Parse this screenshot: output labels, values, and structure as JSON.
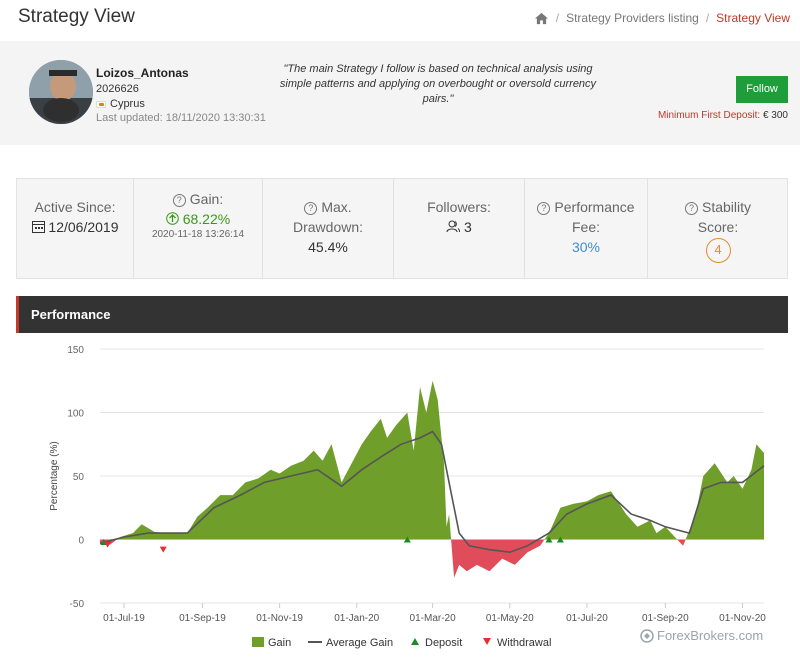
{
  "page": {
    "title": "Strategy View"
  },
  "breadcrumb": {
    "item1": "Strategy Providers listing",
    "item2": "Strategy View",
    "separator": "/"
  },
  "provider": {
    "name": "Loizos_Antonas",
    "id": "2026626",
    "country": "Cyprus",
    "last_updated": "Last updated: 18/11/2020 13:30:31",
    "quote": "\"The main Strategy I follow is based on technical analysis using simple patterns and applying on overbought or oversold currency pairs.\"",
    "follow_label": "Follow",
    "min_deposit_label": "Minimum First Deposit:",
    "min_deposit_value": "€ 300"
  },
  "stats": {
    "active_since_label": "Active Since:",
    "active_since_value": "12/06/2019",
    "gain_label": "Gain:",
    "gain_value": "68.22%",
    "gain_time": "2020-11-18 13:26:14",
    "max_label": "Max.",
    "drawdown_label": "Drawdown:",
    "drawdown_value": "45.4%",
    "followers_label": "Followers:",
    "followers_value": "3",
    "performance_label": "Performance",
    "fee_label": "Fee:",
    "fee_value": "30%",
    "stability_label": "Stability",
    "score_label": "Score:",
    "score_value": "4",
    "colors": {
      "gain": "#3a9a1a",
      "fee": "#3d8fd1",
      "score": "#e08e2b"
    }
  },
  "performance": {
    "section_title": "Performance"
  },
  "watermark": "ForexBrokers.com",
  "chart_data": {
    "type": "area",
    "title": "",
    "xlabel": "",
    "ylabel": "Percentage (%)",
    "ylim": [
      -50,
      150
    ],
    "yticks": [
      -50,
      0,
      50,
      100,
      150
    ],
    "xtick_labels": [
      "01-Jul-19",
      "01-Sep-19",
      "01-Nov-19",
      "01-Jan-20",
      "01-Mar-20",
      "01-May-20",
      "01-Jul-20",
      "01-Sep-20",
      "01-Nov-20"
    ],
    "x_range": [
      "2019-06-12",
      "2020-11-18"
    ],
    "grid": true,
    "legend_position": "bottom",
    "series": [
      {
        "name": "Gain",
        "type": "area",
        "color_positive": "#6f9e2b",
        "color_negative": "#e04c5a",
        "points": [
          [
            "2019-06-12",
            -3
          ],
          [
            "2019-06-20",
            -4
          ],
          [
            "2019-06-28",
            2
          ],
          [
            "2019-07-08",
            5
          ],
          [
            "2019-07-15",
            12
          ],
          [
            "2019-07-25",
            6
          ],
          [
            "2019-08-05",
            5
          ],
          [
            "2019-08-20",
            5
          ],
          [
            "2019-08-28",
            18
          ],
          [
            "2019-09-05",
            25
          ],
          [
            "2019-09-15",
            35
          ],
          [
            "2019-09-25",
            35
          ],
          [
            "2019-10-05",
            45
          ],
          [
            "2019-10-15",
            48
          ],
          [
            "2019-10-25",
            55
          ],
          [
            "2019-11-01",
            52
          ],
          [
            "2019-11-10",
            58
          ],
          [
            "2019-11-20",
            62
          ],
          [
            "2019-11-28",
            70
          ],
          [
            "2019-12-05",
            62
          ],
          [
            "2019-12-12",
            75
          ],
          [
            "2019-12-20",
            45
          ],
          [
            "2019-12-28",
            60
          ],
          [
            "2020-01-05",
            75
          ],
          [
            "2020-01-12",
            85
          ],
          [
            "2020-01-20",
            95
          ],
          [
            "2020-01-25",
            80
          ],
          [
            "2020-02-01",
            90
          ],
          [
            "2020-02-10",
            100
          ],
          [
            "2020-02-15",
            70
          ],
          [
            "2020-02-20",
            120
          ],
          [
            "2020-02-25",
            100
          ],
          [
            "2020-03-01",
            125
          ],
          [
            "2020-03-05",
            110
          ],
          [
            "2020-03-10",
            60
          ],
          [
            "2020-03-12",
            10
          ],
          [
            "2020-03-14",
            20
          ],
          [
            "2020-03-18",
            -30
          ],
          [
            "2020-03-22",
            -20
          ],
          [
            "2020-03-28",
            -25
          ],
          [
            "2020-04-05",
            -20
          ],
          [
            "2020-04-15",
            -25
          ],
          [
            "2020-04-25",
            -15
          ],
          [
            "2020-05-05",
            -20
          ],
          [
            "2020-05-15",
            -10
          ],
          [
            "2020-05-25",
            -5
          ],
          [
            "2020-06-01",
            5
          ],
          [
            "2020-06-10",
            25
          ],
          [
            "2020-06-20",
            28
          ],
          [
            "2020-07-01",
            30
          ],
          [
            "2020-07-10",
            35
          ],
          [
            "2020-07-20",
            38
          ],
          [
            "2020-08-01",
            20
          ],
          [
            "2020-08-10",
            10
          ],
          [
            "2020-08-20",
            15
          ],
          [
            "2020-08-25",
            5
          ],
          [
            "2020-09-01",
            10
          ],
          [
            "2020-09-15",
            -5
          ],
          [
            "2020-09-25",
            20
          ],
          [
            "2020-10-01",
            50
          ],
          [
            "2020-10-10",
            60
          ],
          [
            "2020-10-20",
            45
          ],
          [
            "2020-10-25",
            50
          ],
          [
            "2020-11-01",
            40
          ],
          [
            "2020-11-08",
            55
          ],
          [
            "2020-11-12",
            75
          ],
          [
            "2020-11-18",
            68
          ]
        ]
      },
      {
        "name": "Average Gain",
        "type": "line",
        "color": "#555555",
        "points": [
          [
            "2019-06-12",
            -3
          ],
          [
            "2019-07-01",
            2
          ],
          [
            "2019-07-20",
            5
          ],
          [
            "2019-08-20",
            5
          ],
          [
            "2019-09-10",
            25
          ],
          [
            "2019-10-01",
            35
          ],
          [
            "2019-10-20",
            45
          ],
          [
            "2019-11-10",
            50
          ],
          [
            "2019-12-01",
            55
          ],
          [
            "2019-12-20",
            42
          ],
          [
            "2020-01-05",
            55
          ],
          [
            "2020-01-20",
            65
          ],
          [
            "2020-02-05",
            75
          ],
          [
            "2020-02-20",
            80
          ],
          [
            "2020-03-01",
            85
          ],
          [
            "2020-03-08",
            75
          ],
          [
            "2020-03-15",
            40
          ],
          [
            "2020-03-22",
            5
          ],
          [
            "2020-03-30",
            -5
          ],
          [
            "2020-04-15",
            -8
          ],
          [
            "2020-05-01",
            -10
          ],
          [
            "2020-05-15",
            -5
          ],
          [
            "2020-06-01",
            5
          ],
          [
            "2020-06-15",
            20
          ],
          [
            "2020-07-01",
            28
          ],
          [
            "2020-07-20",
            35
          ],
          [
            "2020-08-05",
            20
          ],
          [
            "2020-08-20",
            15
          ],
          [
            "2020-09-01",
            10
          ],
          [
            "2020-09-20",
            5
          ],
          [
            "2020-10-01",
            40
          ],
          [
            "2020-10-15",
            45
          ],
          [
            "2020-11-01",
            45
          ],
          [
            "2020-11-18",
            58
          ]
        ]
      },
      {
        "name": "Deposit",
        "type": "marker",
        "marker": "triangle-up",
        "color": "#1d8a2a",
        "points": [
          [
            "2019-06-15",
            -2
          ],
          [
            "2020-02-10",
            0
          ],
          [
            "2020-06-01",
            0
          ],
          [
            "2020-06-10",
            0
          ]
        ]
      },
      {
        "name": "Withdrawal",
        "type": "marker",
        "marker": "triangle-down",
        "color": "#e0302f",
        "points": [
          [
            "2019-06-18",
            -4
          ],
          [
            "2019-08-01",
            -8
          ]
        ]
      }
    ]
  }
}
